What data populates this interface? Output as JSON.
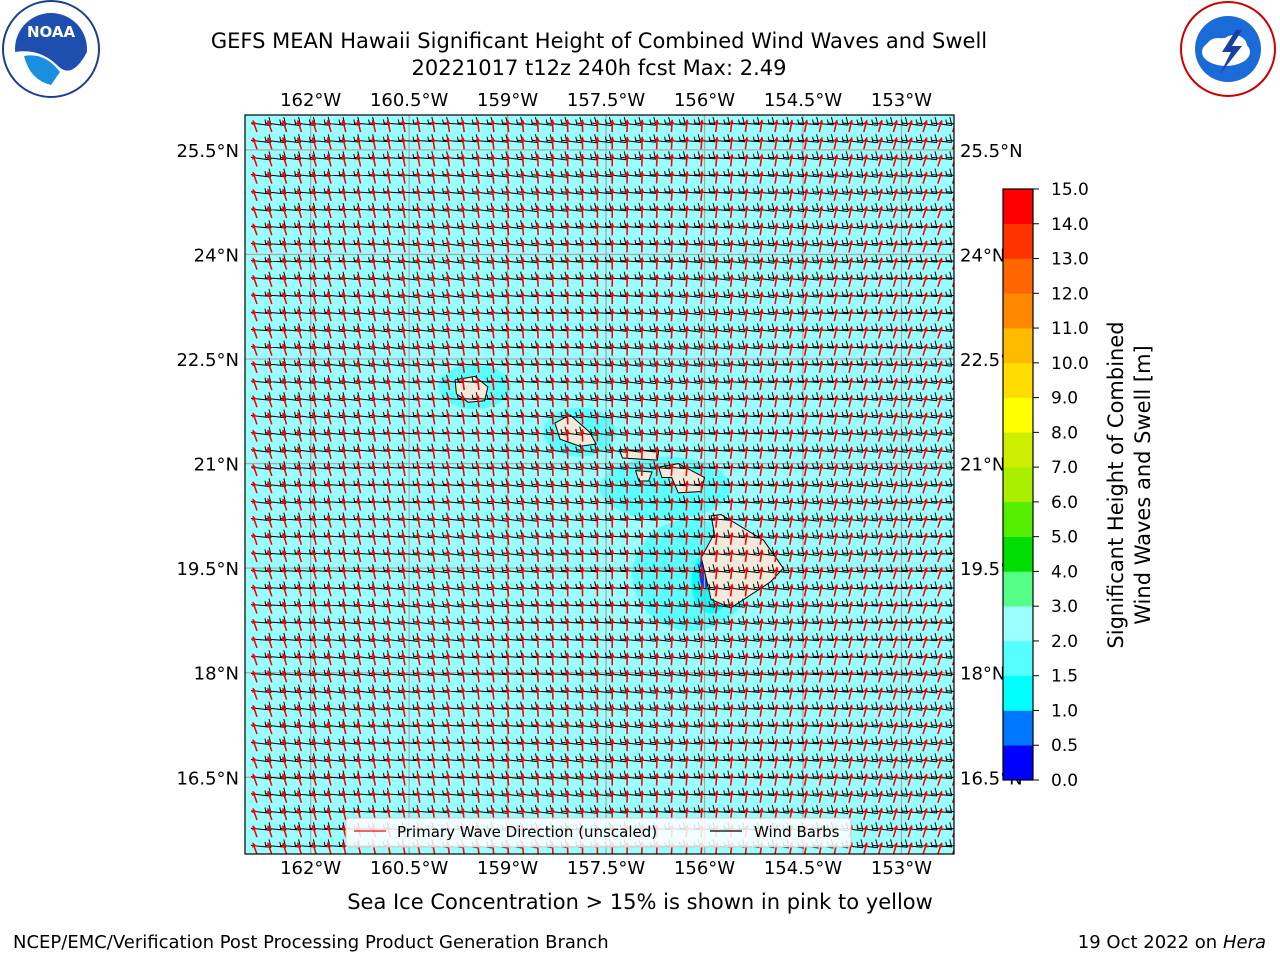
{
  "title": {
    "line1": "GEFS MEAN Hawaii Significant Height of Combined Wind Waves and Swell",
    "line2": "20221017 t12z 240h fcst   Max: 2.49"
  },
  "map": {
    "lon_labels": [
      "162°W",
      "160.5°W",
      "159°W",
      "157.5°W",
      "156°W",
      "154.5°W",
      "153°W"
    ],
    "lon_values": [
      -162,
      -160.5,
      -159,
      -157.5,
      -156,
      -154.5,
      -153
    ],
    "lat_labels": [
      "25.5°N",
      "24°N",
      "22.5°N",
      "21°N",
      "19.5°N",
      "18°N",
      "16.5°N"
    ],
    "lat_values": [
      25.5,
      24,
      22.5,
      21,
      19.5,
      18,
      16.5
    ],
    "lon_range": [
      -163,
      -152.2
    ],
    "lat_range": [
      15.4,
      26
    ],
    "ocean_color": "#99ffff",
    "land_color": "#efeadb"
  },
  "legend": {
    "wave_label": "Primary Wave Direction (unscaled)",
    "barb_label": "Wind Barbs",
    "wave_color": "#ff0000",
    "barb_color": "#000000"
  },
  "colorbar": {
    "title_line1": "Significant Height of Combined",
    "title_line2": "Wind Waves and Swell [m]",
    "ticks": [
      "0.0",
      "0.5",
      "1.0",
      "1.5",
      "2.0",
      "3.0",
      "4.0",
      "5.0",
      "6.0",
      "7.0",
      "8.0",
      "9.0",
      "10.0",
      "11.0",
      "12.0",
      "13.0",
      "14.0",
      "15.0"
    ],
    "colors": [
      "#0000ff",
      "#0077ff",
      "#00ffff",
      "#55ffff",
      "#99ffff",
      "#55ff88",
      "#00dd00",
      "#55ee00",
      "#aaee00",
      "#ccee00",
      "#ffff00",
      "#ffdd00",
      "#ffbb00",
      "#ff8800",
      "#ff6600",
      "#ff3300",
      "#ff0000"
    ]
  },
  "seaice_note": "Sea Ice Concentration > 15% is shown in pink to yellow",
  "footer": {
    "left": "NCEP/EMC/Verification Post Processing Product Generation Branch",
    "date": "19 Oct 2022 on ",
    "host": "Hera"
  }
}
